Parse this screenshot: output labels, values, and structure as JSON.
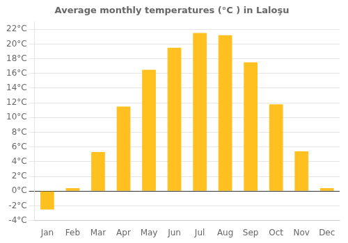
{
  "chart_data": {
    "type": "bar",
    "title": "Average monthly temperatures (°C ) in Laloşu",
    "categories": [
      "Jan",
      "Feb",
      "Mar",
      "Apr",
      "May",
      "Jun",
      "Jul",
      "Aug",
      "Sep",
      "Oct",
      "Nov",
      "Dec"
    ],
    "values": [
      -2.5,
      0.4,
      5.3,
      11.5,
      16.5,
      19.5,
      21.5,
      21.2,
      17.5,
      11.8,
      5.4,
      0.4
    ],
    "color": "#FFC020",
    "ylim": [
      -4,
      23
    ],
    "yticks": [
      {
        "value": -4,
        "label": "-4°C"
      },
      {
        "value": -2,
        "label": "-2°C"
      },
      {
        "value": 0,
        "label": "0°C"
      },
      {
        "value": 2,
        "label": "2°C"
      },
      {
        "value": 4,
        "label": "4°C"
      },
      {
        "value": 6,
        "label": "6°C"
      },
      {
        "value": 8,
        "label": "8°C"
      },
      {
        "value": 10,
        "label": "10°C"
      },
      {
        "value": 12,
        "label": "12°C"
      },
      {
        "value": 14,
        "label": "14°C"
      },
      {
        "value": 16,
        "label": "16°C"
      },
      {
        "value": 18,
        "label": "18°C"
      },
      {
        "value": 20,
        "label": "20°C"
      },
      {
        "value": 22,
        "label": "22°C"
      }
    ],
    "grid": true
  }
}
